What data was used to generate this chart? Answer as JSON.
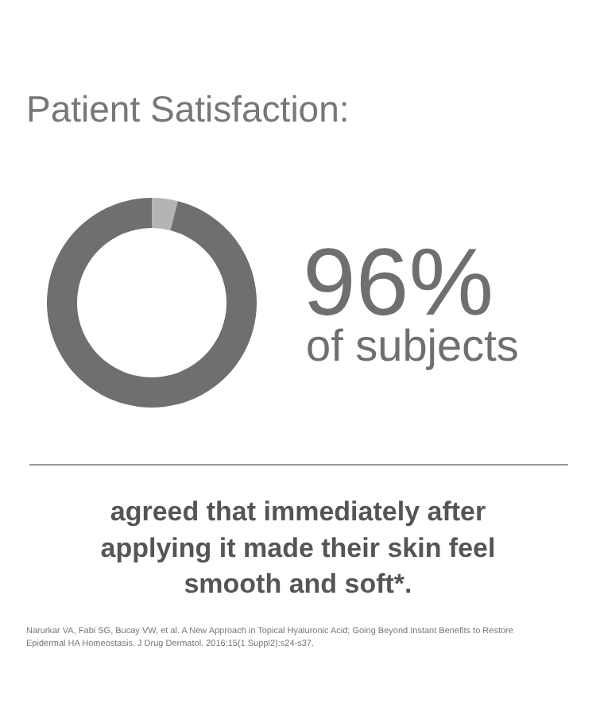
{
  "chart_data": {
    "type": "donut",
    "title": "Patient Satisfaction:",
    "categories": [
      null,
      null
    ],
    "values": [
      4,
      96
    ],
    "colors": [
      "#b4b4b2",
      "#6f706e"
    ],
    "value_labels": [
      null,
      "96%"
    ],
    "annotations": [
      "of subjects",
      "agreed that immediately after\napplying it made their skin feel\nsmooth and soft*.",
      "Narurkar VA, Fabi SG, Bucay VW, et al. A New Approach in Topical Hyaluronic Acid; Going Beyond Instant Benefits to Restore\nEpidermal HA Homeostasis. J Drug Dermatol. 2016;15(1 Suppl2):s24-s37."
    ]
  }
}
